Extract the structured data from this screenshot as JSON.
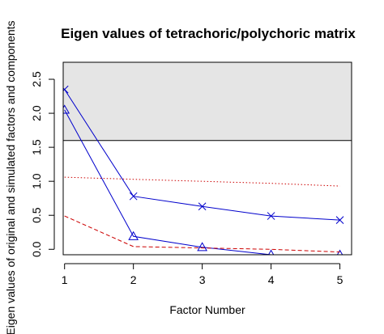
{
  "chart_data": {
    "type": "line",
    "title": "Eigen values of tetrachoric/polychoric matrix",
    "xlabel": "Factor Number",
    "ylabel": "Eigen values of original  and simulated factors and components",
    "x": [
      1,
      2,
      3,
      4,
      5
    ],
    "x_ticks": [
      "1",
      "2",
      "3",
      "4",
      "5"
    ],
    "y_ticks": [
      "0.0",
      "0.5",
      "1.0",
      "1.5",
      "2.0",
      "2.5"
    ],
    "xlim": [
      0.98,
      5.17
    ],
    "ylim": [
      -0.08,
      2.75
    ],
    "grid": false,
    "shaded_band": {
      "from": 1.6,
      "to": 2.75,
      "color": "#e5e5e5"
    },
    "series": [
      {
        "style": "solid",
        "marker": "x",
        "color": "#0000cc",
        "values": [
          2.35,
          0.78,
          0.63,
          0.49,
          0.43
        ]
      },
      {
        "style": "solid",
        "marker": "triangle",
        "color": "#0000cc",
        "values": [
          2.05,
          0.19,
          0.03,
          -0.08,
          -0.08
        ]
      },
      {
        "style": "dotted",
        "marker": "none",
        "color": "#cc0000",
        "values": [
          1.06,
          1.03,
          1.0,
          0.97,
          0.93
        ]
      },
      {
        "style": "dashed",
        "marker": "none",
        "color": "#cc0000",
        "values": [
          0.49,
          0.04,
          0.02,
          0.0,
          -0.04
        ]
      }
    ]
  }
}
